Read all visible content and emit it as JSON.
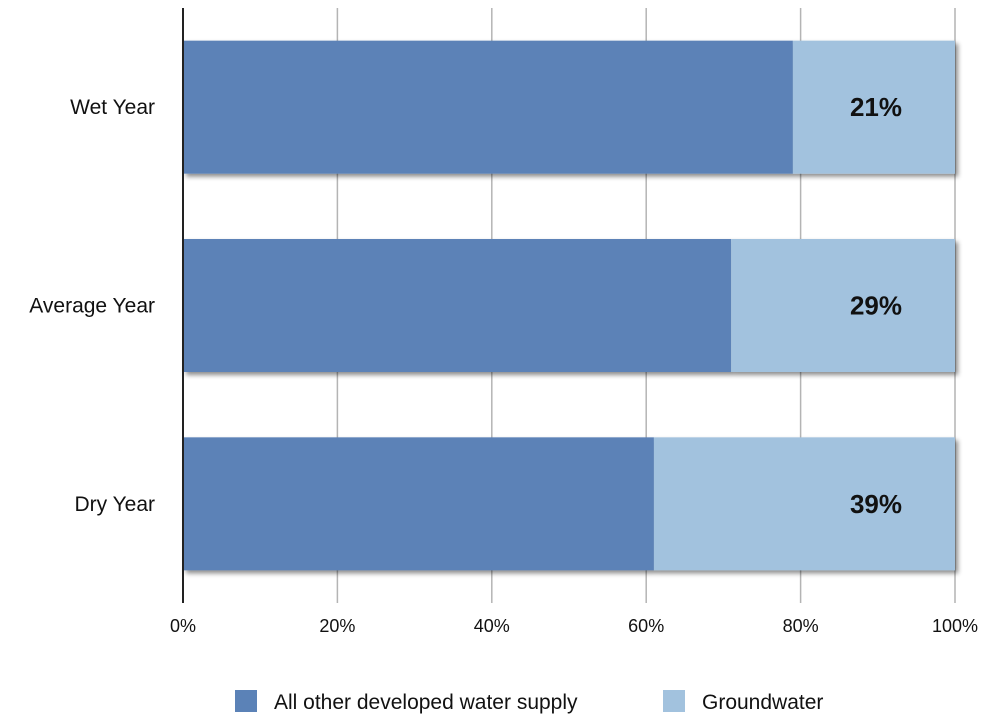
{
  "chart_data": {
    "type": "bar",
    "orientation": "horizontal",
    "stacked": true,
    "percent_stacked": true,
    "categories": [
      "Wet Year",
      "Average Year",
      "Dry Year"
    ],
    "series": [
      {
        "name": "All other developed water supply",
        "values": [
          79,
          71,
          61
        ],
        "color": "#5b82b7"
      },
      {
        "name": "Groundwater",
        "values": [
          21,
          29,
          39
        ],
        "color": "#a2c2de"
      }
    ],
    "data_labels": [
      "21%",
      "29%",
      "39%"
    ],
    "xlim": [
      0,
      100
    ],
    "x_ticks": [
      "0%",
      "20%",
      "40%",
      "60%",
      "80%",
      "100%"
    ],
    "title": "",
    "xlabel": "",
    "ylabel": "",
    "grid": "vertical",
    "legend": "bottom"
  }
}
